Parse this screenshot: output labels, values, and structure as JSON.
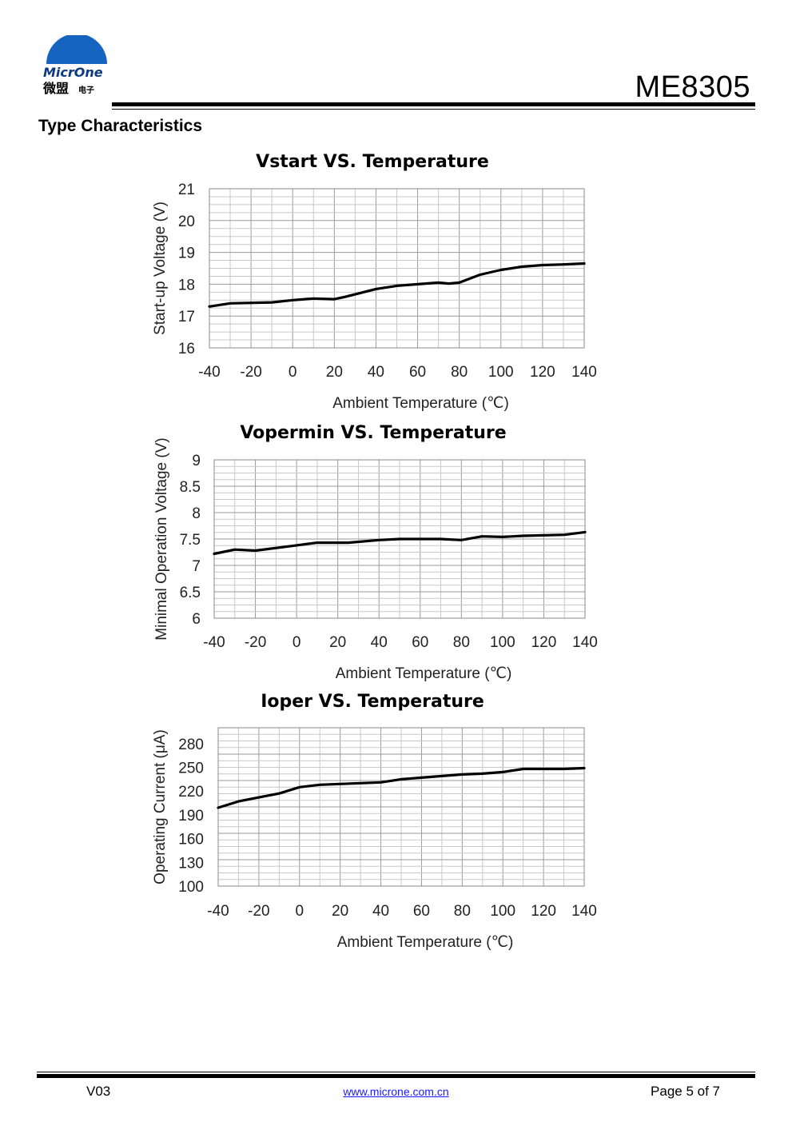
{
  "header": {
    "logo_text": "MicrOne",
    "logo_cn": "微盟",
    "logo_cn_small": "电子",
    "part_number": "ME8305",
    "brand_blue": "#1565c0",
    "brand_orange": "#f28c00"
  },
  "section_title": "Type Characteristics",
  "chart_data": [
    {
      "type": "line",
      "title": "Vstart VS. Temperature",
      "xlabel": "Ambient Temperature (℃)",
      "ylabel": "Start-up Voltage (V)",
      "xlim": [
        -40,
        140
      ],
      "ylim": [
        16,
        21
      ],
      "xticks": [
        -40,
        -20,
        0,
        20,
        40,
        60,
        80,
        100,
        120,
        140
      ],
      "yticks": [
        16,
        17,
        18,
        19,
        20,
        21
      ],
      "ytick_labels": [
        "16",
        "17",
        "18",
        "19",
        "20",
        "21"
      ],
      "grid": true,
      "x": [
        -40,
        -30,
        -10,
        0,
        10,
        20,
        25,
        40,
        50,
        60,
        70,
        75,
        80,
        90,
        100,
        110,
        120,
        130,
        140
      ],
      "values": [
        17.3,
        17.4,
        17.43,
        17.5,
        17.55,
        17.53,
        17.6,
        17.85,
        17.95,
        18.0,
        18.05,
        18.02,
        18.05,
        18.3,
        18.45,
        18.55,
        18.6,
        18.62,
        18.65
      ]
    },
    {
      "type": "line",
      "title": "Vopermin VS. Temperature",
      "xlabel": "Ambient Temperature (℃)",
      "ylabel": "Minimal Operation Voltage (V)",
      "xlim": [
        -40,
        140
      ],
      "ylim": [
        6,
        9
      ],
      "xticks": [
        -40,
        -20,
        0,
        20,
        40,
        60,
        80,
        100,
        120,
        140
      ],
      "yticks": [
        6,
        6.5,
        7,
        7.5,
        8,
        8.5,
        9
      ],
      "ytick_labels": [
        "6",
        "6.5",
        "7",
        "7.5",
        "8",
        "8.5",
        "9"
      ],
      "grid": true,
      "x": [
        -40,
        -30,
        -20,
        0,
        10,
        25,
        40,
        50,
        70,
        80,
        90,
        100,
        110,
        130,
        140
      ],
      "values": [
        7.22,
        7.3,
        7.28,
        7.38,
        7.43,
        7.43,
        7.48,
        7.5,
        7.5,
        7.48,
        7.55,
        7.54,
        7.56,
        7.58,
        7.63
      ]
    },
    {
      "type": "line",
      "title": "Ioper  VS. Temperature",
      "xlabel": "Ambient Temperature (℃)",
      "ylabel": "Operating Current (μA)",
      "xlim": [
        -40,
        140
      ],
      "ylim": [
        100,
        300
      ],
      "xticks": [
        -40,
        -20,
        0,
        20,
        40,
        60,
        80,
        100,
        120,
        140
      ],
      "yticks": [
        100,
        130,
        160,
        190,
        220,
        250,
        280
      ],
      "ytick_labels": [
        "100",
        "130",
        "160",
        "190",
        "220",
        "250",
        "280"
      ],
      "grid": true,
      "x": [
        -40,
        -30,
        -20,
        -10,
        0,
        10,
        20,
        30,
        40,
        50,
        60,
        70,
        80,
        90,
        100,
        110,
        120,
        130,
        140
      ],
      "values": [
        199,
        207,
        212,
        217,
        225,
        228,
        229,
        230,
        231,
        235,
        237,
        239,
        241,
        242,
        244,
        248,
        248,
        248,
        249
      ]
    }
  ],
  "footer": {
    "version": "V03",
    "url": "www.microne.com.cn",
    "page": "Page 5 of 7"
  }
}
